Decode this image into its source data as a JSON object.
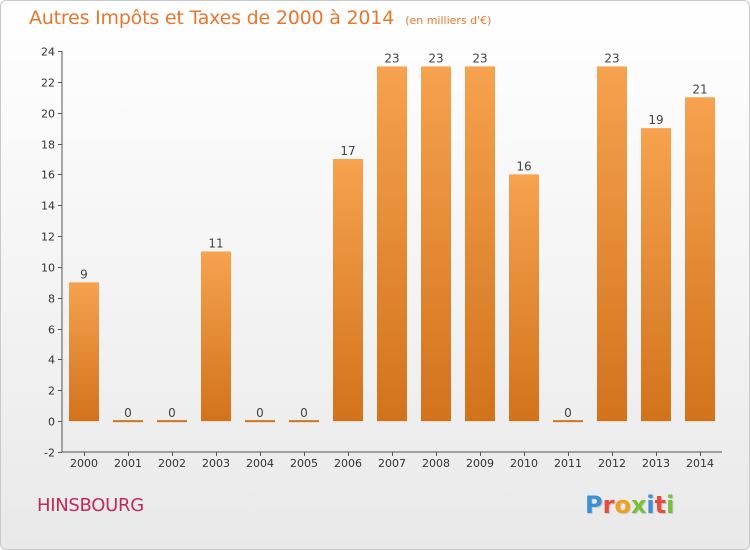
{
  "header": {
    "title": "Autres Impôts et Taxes de 2000 à 2014",
    "subtitle": "(en milliers d'€)"
  },
  "footer": {
    "location": "HINSBOURG",
    "logo_text": "Proxiti"
  },
  "colors": {
    "bar_light": "#f6a24e",
    "bar_dark": "#d2731c",
    "title": "#e8762d",
    "location": "#c12a5a",
    "logo": [
      "#3d8fd6",
      "#e84c3d",
      "#f0a020",
      "#7abf3b",
      "#3d8fd6",
      "#e84c3d",
      "#7abf3b"
    ]
  },
  "chart_data": {
    "type": "bar",
    "title": "Autres Impôts et Taxes de 2000 à 2014",
    "subtitle": "(en milliers d'€)",
    "categories": [
      "2000",
      "2001",
      "2002",
      "2003",
      "2004",
      "2005",
      "2006",
      "2007",
      "2008",
      "2009",
      "2010",
      "2011",
      "2012",
      "2013",
      "2014"
    ],
    "values": [
      9,
      0,
      0,
      11,
      0,
      0,
      17,
      23,
      23,
      23,
      16,
      0,
      23,
      19,
      21
    ],
    "value_labels": [
      "9",
      "0",
      "0",
      "11",
      "0",
      "0",
      "17",
      "23",
      "23",
      "23",
      "16",
      "0",
      "23",
      "19",
      "21"
    ],
    "ylim": [
      -2,
      24
    ],
    "yticks": [
      -2,
      0,
      2,
      4,
      6,
      8,
      10,
      12,
      14,
      16,
      18,
      20,
      22,
      24
    ],
    "grid": false,
    "legend": "none"
  }
}
